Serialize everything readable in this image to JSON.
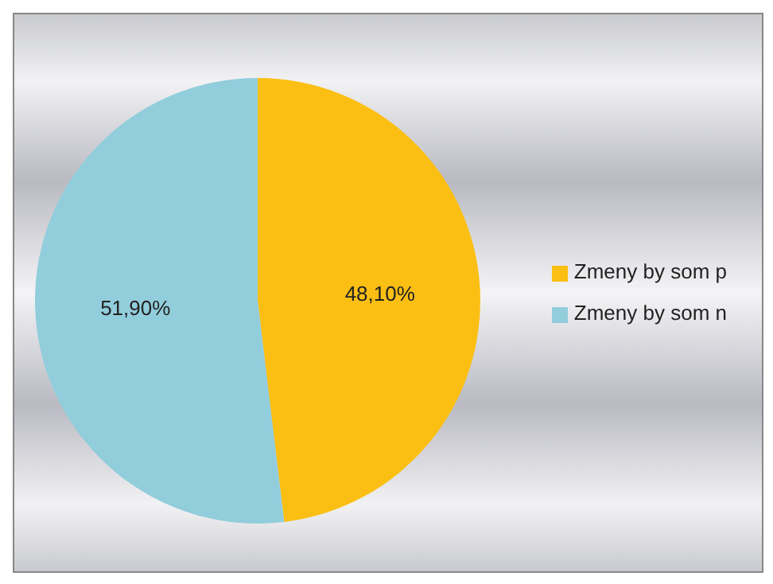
{
  "chart_data": {
    "type": "pie",
    "categories": [
      "Zmeny by som p",
      "Zmeny by som n"
    ],
    "values": [
      48.1,
      51.9
    ],
    "colors": [
      "#fbbf14",
      "#92cddc"
    ],
    "value_labels": [
      "48,10%",
      "51,90%"
    ],
    "legend": "right"
  }
}
